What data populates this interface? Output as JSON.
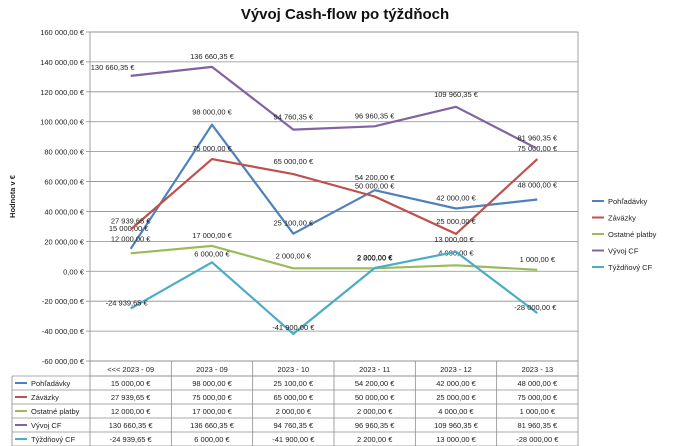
{
  "chart_data": {
    "type": "line",
    "title": "Vývoj Cash-flow po týždňoch",
    "ylabel": "Hodnota v €",
    "xlabel": "",
    "ylim": [
      -60000,
      160000
    ],
    "ytick_step": 20000,
    "ytick_labels": [
      "160 000,00 €",
      "140 000,00 €",
      "120 000,00 €",
      "100 000,00 €",
      "80 000,00 €",
      "60 000,00 €",
      "40 000,00 €",
      "20 000,00 €",
      "0,00 €",
      "-20 000,00 €",
      "-40 000,00 €",
      "-60 000,00 €"
    ],
    "categories": [
      "<<< 2023 - 09",
      "2023 - 09",
      "2023 - 10",
      "2023 - 11",
      "2023 - 12",
      "2023 - 13"
    ],
    "grid": true,
    "legend_position": "right",
    "series": [
      {
        "name": "Pohľadávky",
        "color": "#4f81bd",
        "values": [
          15000,
          98000,
          25100,
          54200,
          42000,
          48000
        ],
        "labels": [
          "15 000,00 €",
          "98 000,00 €",
          "25 100,00 €",
          "54 200,00 €",
          "42 000,00 €",
          "48 000,00 €"
        ],
        "table": [
          "15 000,00 €",
          "98 000,00 €",
          "25 100,00 €",
          "54 200,00 €",
          "42 000,00 €",
          "48 000,00 €"
        ]
      },
      {
        "name": "Záväzky",
        "color": "#c0504d",
        "values": [
          27939.65,
          75000,
          65000,
          50000,
          25000,
          75000
        ],
        "labels": [
          "27 939,65 €",
          "75 000,00 €",
          "65 000,00 €",
          "50 000,00 €",
          "25 000,00 €",
          "75 000,00 €"
        ],
        "table": [
          "27 939,65 €",
          "75 000,00 €",
          "65 000,00 €",
          "50 000,00 €",
          "25 000,00 €",
          "75 000,00 €"
        ]
      },
      {
        "name": "Ostatné platby",
        "color": "#9bbb59",
        "values": [
          12000,
          17000,
          2000,
          2000,
          4000,
          1000
        ],
        "labels": [
          "12 000,00 €",
          "17 000,00 €",
          "2 000,00 €",
          "2 000,00 €",
          "4 000,00 €",
          "1 000,00 €"
        ],
        "table": [
          "12 000,00 €",
          "17 000,00 €",
          "2 000,00 €",
          "2 000,00 €",
          "4 000,00 €",
          "1 000,00 €"
        ]
      },
      {
        "name": "Vývoj CF",
        "color": "#8064a2",
        "values": [
          130660.35,
          136660.35,
          94760.35,
          96960.35,
          109960.35,
          81960.35
        ],
        "labels": [
          "130 660,35 €",
          "136 660,35 €",
          "94 760,35 €",
          "96 960,35 €",
          "109 960,35 €",
          "81 960,35 €"
        ],
        "table": [
          "130 660,35 €",
          "136 660,35 €",
          "94 760,35 €",
          "96 960,35 €",
          "109 960,35 €",
          "81 960,35 €"
        ]
      },
      {
        "name": "Týždňový CF",
        "color": "#4bacc6",
        "values": [
          -24939.65,
          6000,
          -41900,
          2200,
          13000,
          -28000
        ],
        "labels": [
          "-24 939,65 €",
          "6 000,00 €",
          "-41 900,00 €",
          "2 200,00 €",
          "13 000,00 €",
          "-28 000,00 €"
        ],
        "table": [
          "-24 939,65 €",
          "6 000,00 €",
          "-41 900,00 €",
          "2 200,00 €",
          "13 000,00 €",
          "-28 000,00 €"
        ]
      }
    ]
  }
}
